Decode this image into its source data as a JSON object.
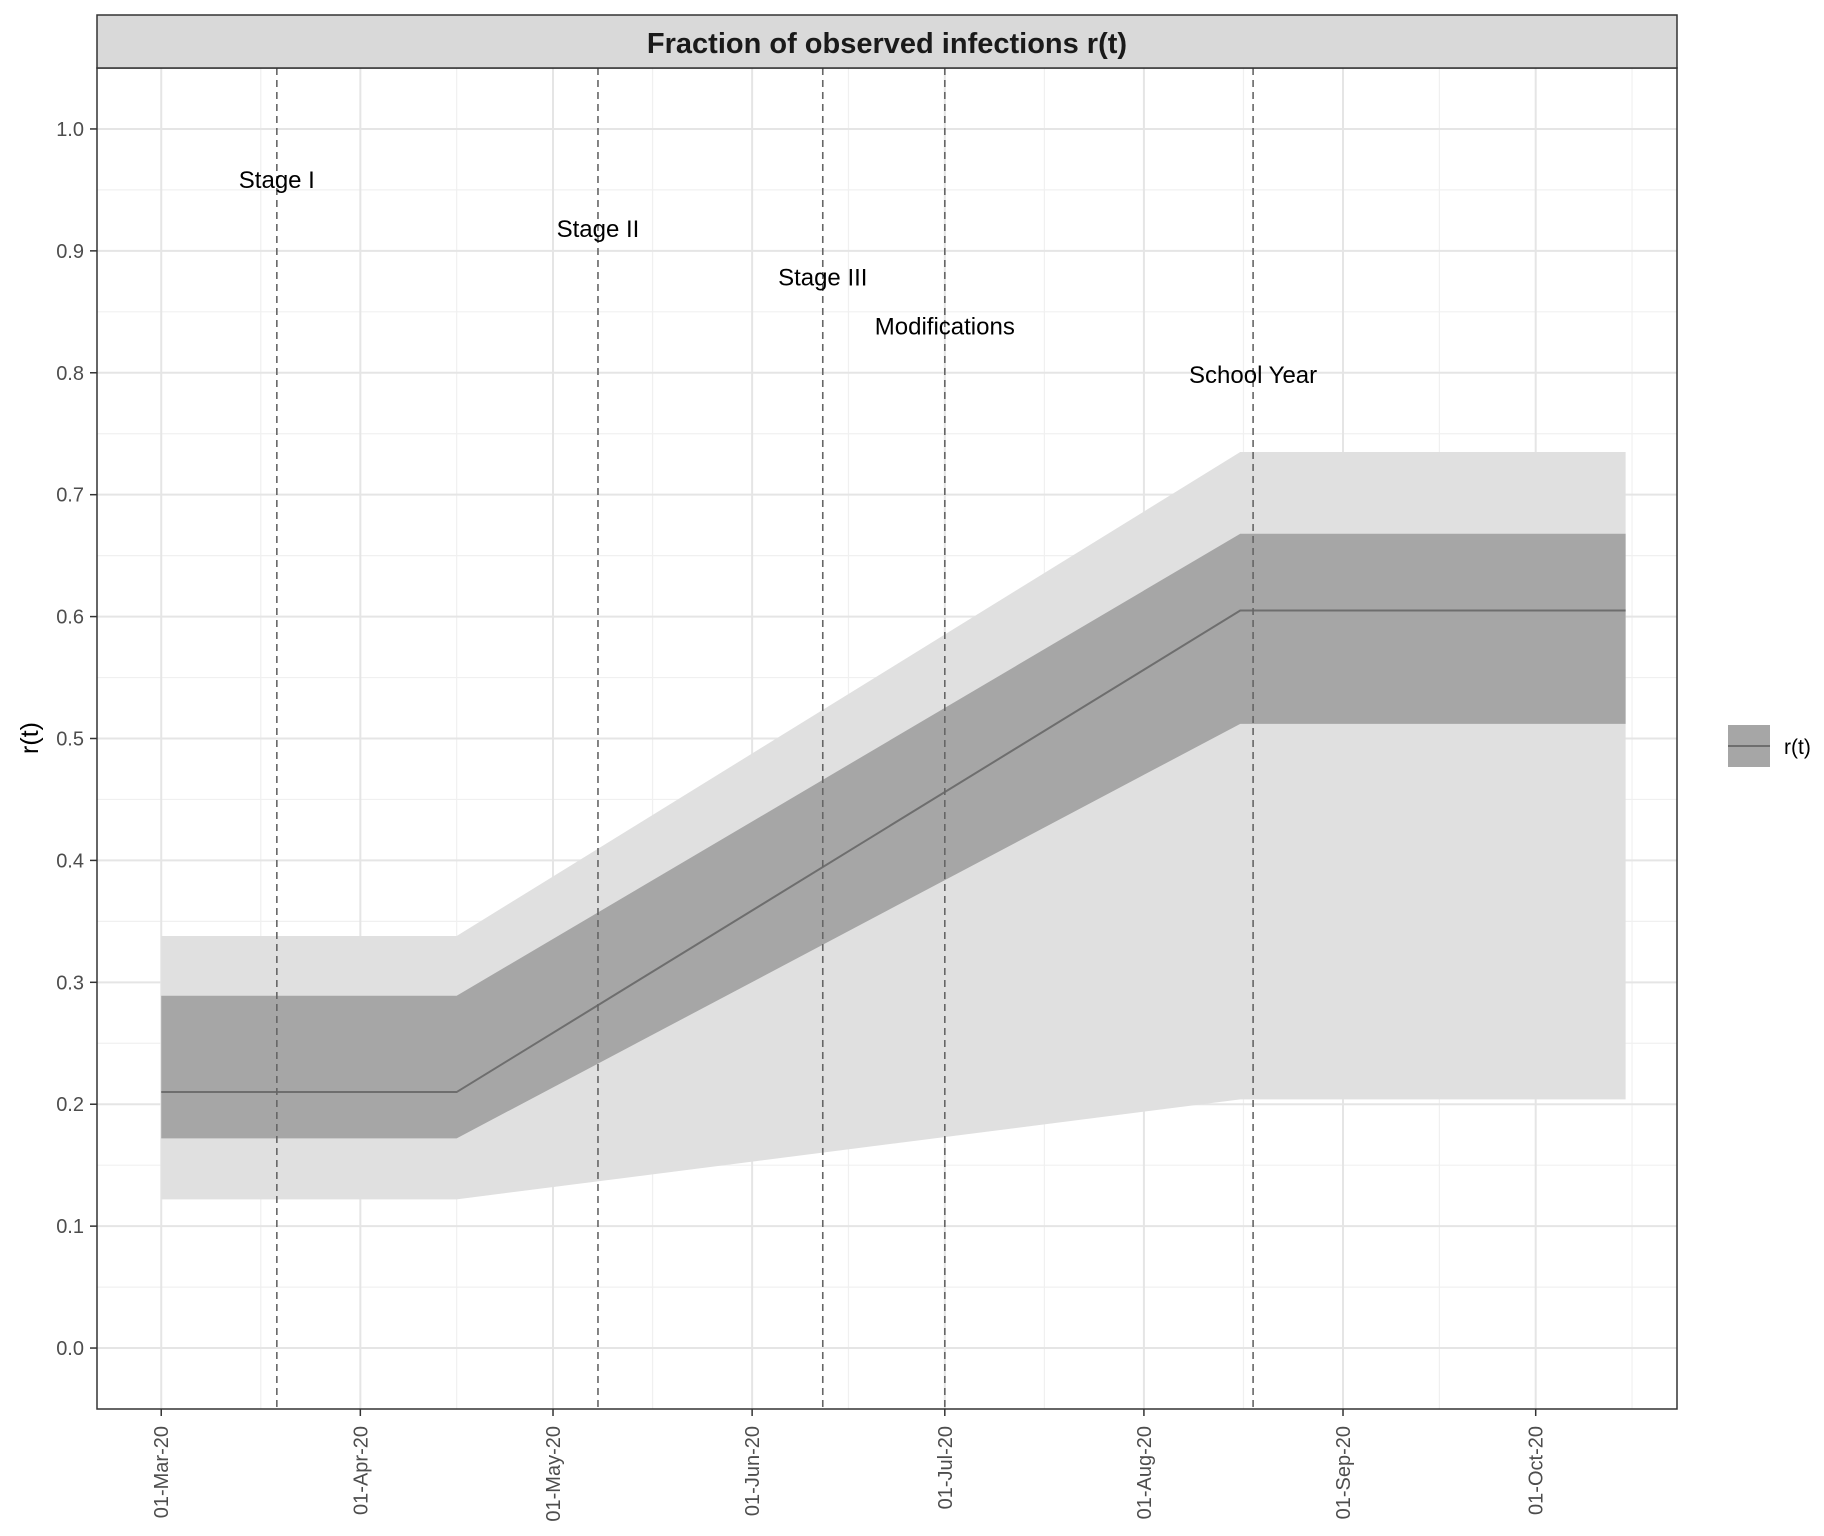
{
  "chart_data": {
    "type": "line",
    "title": "Fraction of observed infections r(t)",
    "xlabel": "",
    "ylabel": "r(t)",
    "x_ticks": [
      "01-Mar-20",
      "01-Apr-20",
      "01-May-20",
      "01-Jun-20",
      "01-Jul-20",
      "01-Aug-20",
      "01-Sep-20",
      "01-Oct-20"
    ],
    "x_range": [
      "2020-02-20",
      "2020-10-23"
    ],
    "y_ticks": [
      "0.0",
      "0.1",
      "0.2",
      "0.3",
      "0.4",
      "0.5",
      "0.6",
      "0.7",
      "0.8",
      "0.9",
      "1.0"
    ],
    "ylim": [
      -0.05,
      1.05
    ],
    "grid": true,
    "legend_position": "right",
    "series": [
      {
        "name": "r(t)",
        "x": [
          "2020-03-01",
          "2020-04-16",
          "2020-08-16",
          "2020-10-15"
        ],
        "values": [
          0.21,
          0.21,
          0.605,
          0.605
        ],
        "inner_band": {
          "lower": [
            0.172,
            0.172,
            0.512,
            0.512
          ],
          "upper": [
            0.289,
            0.289,
            0.668,
            0.668
          ]
        },
        "outer_band": {
          "lower": [
            0.122,
            0.122,
            0.204,
            0.204
          ],
          "upper": [
            0.338,
            0.338,
            0.735,
            0.735
          ]
        }
      }
    ],
    "annotations": [
      {
        "label": "Stage I",
        "date": "2020-03-19",
        "y": 0.958
      },
      {
        "label": "Stage II",
        "date": "2020-05-08",
        "y": 0.918
      },
      {
        "label": "Stage III",
        "date": "2020-06-12",
        "y": 0.878
      },
      {
        "label": "Modifications",
        "date": "2020-07-01",
        "y": 0.838
      },
      {
        "label": "School Year",
        "date": "2020-08-18",
        "y": 0.798
      }
    ]
  },
  "colors": {
    "strip": "#d9d9d9",
    "outer_band": "#e0e0e0",
    "inner_band": "#a6a6a6",
    "line": "#6e6e6e",
    "grid_major": "#e5e5e5",
    "grid_minor": "#f0f0f0",
    "vline": "#666666"
  }
}
